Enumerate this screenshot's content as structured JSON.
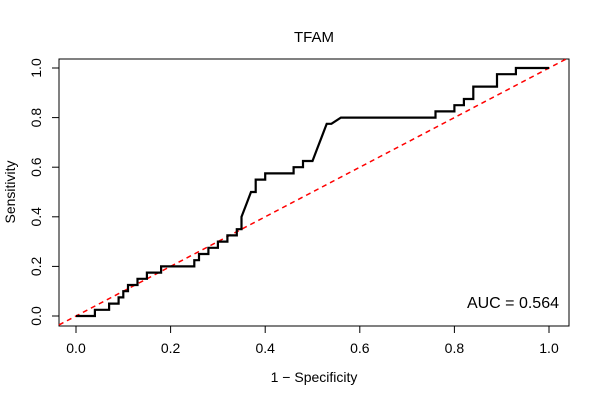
{
  "chart_data": {
    "type": "line",
    "title": "TFAM",
    "xlabel": "1 − Specificity",
    "ylabel": "Sensitivity",
    "xlim": [
      0,
      1
    ],
    "ylim": [
      0,
      1
    ],
    "x_ticks": [
      "0.0",
      "0.2",
      "0.4",
      "0.6",
      "0.8",
      "1.0"
    ],
    "y_ticks": [
      "0.0",
      "0.2",
      "0.4",
      "0.6",
      "0.8",
      "1.0"
    ],
    "grid": false,
    "annotation": "AUC = 0.564",
    "reference_line": {
      "x": [
        0,
        1
      ],
      "y": [
        0,
        1
      ],
      "color": "#ff0000",
      "style": "dashed"
    },
    "series": [
      {
        "color": "#000000",
        "x": [
          0.0,
          0.04,
          0.04,
          0.07,
          0.07,
          0.09,
          0.09,
          0.1,
          0.1,
          0.11,
          0.11,
          0.13,
          0.13,
          0.15,
          0.15,
          0.18,
          0.18,
          0.25,
          0.25,
          0.26,
          0.26,
          0.28,
          0.28,
          0.3,
          0.3,
          0.32,
          0.32,
          0.34,
          0.34,
          0.35,
          0.35,
          0.36,
          0.37,
          0.38,
          0.38,
          0.4,
          0.4,
          0.46,
          0.46,
          0.48,
          0.48,
          0.5,
          0.51,
          0.52,
          0.53,
          0.54,
          0.56,
          0.56,
          0.76,
          0.76,
          0.8,
          0.8,
          0.82,
          0.82,
          0.84,
          0.84,
          0.89,
          0.89,
          0.93,
          0.93,
          1.0
        ],
        "y": [
          0.0,
          0.0,
          0.025,
          0.025,
          0.05,
          0.05,
          0.075,
          0.075,
          0.1,
          0.1,
          0.125,
          0.125,
          0.15,
          0.15,
          0.175,
          0.175,
          0.2,
          0.2,
          0.225,
          0.225,
          0.25,
          0.25,
          0.275,
          0.275,
          0.3,
          0.3,
          0.325,
          0.325,
          0.35,
          0.35,
          0.4,
          0.45,
          0.5,
          0.5,
          0.55,
          0.55,
          0.575,
          0.575,
          0.6,
          0.6,
          0.625,
          0.625,
          0.675,
          0.725,
          0.775,
          0.775,
          0.8,
          0.8,
          0.8,
          0.825,
          0.825,
          0.85,
          0.85,
          0.875,
          0.875,
          0.925,
          0.925,
          0.975,
          0.975,
          1.0,
          1.0
        ]
      }
    ]
  }
}
